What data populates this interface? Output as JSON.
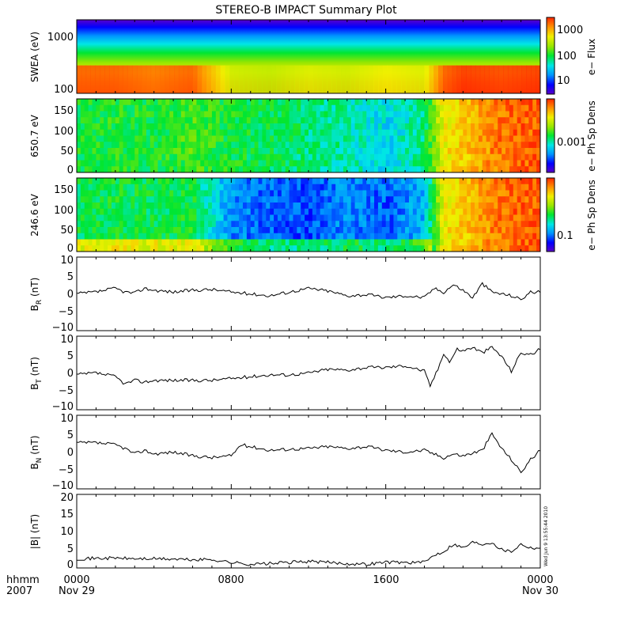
{
  "title": "STEREO-B IMPACT Summary Plot",
  "stamp": "Wed Jun 9 13:55:44 2010",
  "time_axis": {
    "row1": [
      "hhmm",
      "0000",
      "0800",
      "1600",
      "0000"
    ],
    "row2": [
      "2007",
      "Nov 29",
      "",
      "",
      "Nov 30"
    ],
    "tick_hours": [
      0,
      8,
      16,
      24
    ]
  },
  "colors": {
    "line": "#000000",
    "frame": "#000000"
  },
  "colorbar": [
    "#5a00c8",
    "#0000ff",
    "#0096ff",
    "#00e6e6",
    "#00e632",
    "#96e600",
    "#f0f000",
    "#ff9600",
    "#ff2800"
  ],
  "panels": {
    "swea": {
      "ylabel": "SWEA (eV)",
      "yticks": [
        "1000",
        "100"
      ],
      "cblabel": "e− Flux",
      "cbticks": [
        "1000",
        "100",
        "10"
      ],
      "y_scale": "log"
    },
    "pad650": {
      "ylabel": "650.7 eV",
      "yticks": [
        "150",
        "100",
        "50",
        "0"
      ],
      "cblabel": "e− Ph Sp Dens",
      "cbticks": [
        "0.001"
      ],
      "ylim": [
        0,
        180
      ]
    },
    "pad246": {
      "ylabel": "246.6 eV",
      "yticks": [
        "150",
        "100",
        "50",
        "0"
      ],
      "cblabel": "e− Ph Sp Dens",
      "cbticks": [
        "0.1"
      ],
      "ylim": [
        0,
        180
      ]
    },
    "br": {
      "ylabel_main": "B",
      "ylabel_sub": "R",
      "ylabel_unit": " (nT)",
      "yticks": [
        "10",
        "5",
        "0",
        "−5",
        "−10"
      ]
    },
    "bt": {
      "ylabel_main": "B",
      "ylabel_sub": "T",
      "ylabel_unit": " (nT)",
      "yticks": [
        "10",
        "5",
        "0",
        "−5",
        "−10"
      ]
    },
    "bn": {
      "ylabel_main": "B",
      "ylabel_sub": "N",
      "ylabel_unit": " (nT)",
      "yticks": [
        "10",
        "5",
        "0",
        "−5",
        "−10"
      ]
    },
    "bmag": {
      "ylabel": "|B| (nT)",
      "yticks": [
        "20",
        "15",
        "10",
        "5",
        "0"
      ]
    }
  },
  "chart_data": [
    {
      "type": "heatmap",
      "name_ref": "swea",
      "x_hours": [
        0,
        2,
        4,
        6,
        8,
        10,
        12,
        14,
        16,
        18,
        19,
        20,
        22,
        24
      ],
      "low_energy_flux_level": [
        0.95,
        0.95,
        0.92,
        0.95,
        0.7,
        0.68,
        0.72,
        0.7,
        0.75,
        0.72,
        0.95,
        1.0,
        0.98,
        1.0
      ]
    },
    {
      "type": "heatmap",
      "name_ref": "pad650",
      "x_hours": [
        0,
        2,
        4,
        6,
        8,
        10,
        12,
        14,
        16,
        18,
        19,
        20,
        22,
        24
      ],
      "level": [
        0.5,
        0.52,
        0.5,
        0.55,
        0.5,
        0.48,
        0.45,
        0.42,
        0.35,
        0.45,
        0.75,
        0.8,
        0.92,
        0.95
      ]
    },
    {
      "type": "heatmap",
      "name_ref": "pad246",
      "x_hours": [
        0,
        2,
        4,
        6,
        8,
        10,
        12,
        14,
        16,
        18,
        19,
        20,
        22,
        24
      ],
      "level": [
        0.48,
        0.5,
        0.48,
        0.5,
        0.25,
        0.2,
        0.18,
        0.25,
        0.2,
        0.3,
        0.75,
        0.8,
        0.92,
        0.95
      ]
    },
    {
      "type": "line",
      "name_ref": "br",
      "ylim": [
        -10,
        10
      ],
      "x_hours": [
        0,
        1,
        2,
        2.5,
        3,
        3.5,
        4,
        5,
        6,
        7,
        8,
        9,
        10,
        11,
        12,
        13,
        14,
        15,
        16,
        17,
        18,
        18.5,
        19,
        19.5,
        20,
        20.5,
        21,
        21.5,
        22,
        22.5,
        23,
        23.5,
        24
      ],
      "values": [
        0,
        0.5,
        1.5,
        0.5,
        0.2,
        1.5,
        1.0,
        0.5,
        1.0,
        1.2,
        0.5,
        0,
        -0.5,
        0.5,
        1.5,
        0.8,
        -0.5,
        -0.2,
        -1.0,
        -0.5,
        -1.0,
        1.5,
        0.5,
        2.5,
        1.0,
        -1.0,
        2.8,
        0.5,
        0.0,
        -0.5,
        -1.5,
        0.5,
        0.5
      ]
    },
    {
      "type": "line",
      "name_ref": "bt",
      "ylim": [
        -10,
        10
      ],
      "x_hours": [
        0,
        1,
        2,
        2.5,
        3,
        3.5,
        4,
        5,
        6,
        7,
        8,
        9,
        10,
        11,
        12,
        13,
        14,
        15,
        16,
        17,
        18,
        18.3,
        18.7,
        19,
        19.3,
        19.7,
        20,
        20.5,
        21,
        21.5,
        22,
        22.5,
        23,
        23.5,
        24
      ],
      "values": [
        -0.5,
        0,
        -1.0,
        -3.0,
        -2.0,
        -2.5,
        -2.0,
        -2.0,
        -2.0,
        -2.0,
        -1.5,
        -1.0,
        -0.5,
        -0.5,
        0,
        1.0,
        0.8,
        1.5,
        1.5,
        2.0,
        0.5,
        -3.5,
        1.0,
        5.5,
        3.0,
        6.5,
        6.0,
        7.0,
        5.5,
        7.0,
        4.5,
        0.5,
        5.5,
        5.0,
        6.5
      ]
    },
    {
      "type": "line",
      "name_ref": "bn",
      "ylim": [
        -10,
        10
      ],
      "x_hours": [
        0,
        1,
        2,
        2.5,
        3,
        3.5,
        4,
        5,
        6,
        7,
        8,
        8.5,
        9,
        10,
        11,
        12,
        13,
        14,
        15,
        16,
        17,
        18,
        19,
        19.5,
        20,
        21,
        21.5,
        22,
        22.5,
        23,
        23.5,
        24
      ],
      "values": [
        2.5,
        2.5,
        2.0,
        1.0,
        -0.5,
        0.5,
        -0.5,
        0,
        -1.0,
        -1.5,
        -1.0,
        2.0,
        1.5,
        0.5,
        0.8,
        1.0,
        1.5,
        1.0,
        1.5,
        0.5,
        0,
        0.5,
        -1.5,
        -0.5,
        -1.0,
        0.5,
        5.0,
        1.0,
        -2.0,
        -5.5,
        -2.0,
        0.5
      ]
    },
    {
      "type": "line",
      "name_ref": "bmag",
      "ylim": [
        0,
        20
      ],
      "x_hours": [
        0,
        1,
        2,
        3,
        4,
        5,
        6,
        7,
        8,
        9,
        10,
        11,
        12,
        13,
        14,
        15,
        16,
        17,
        18,
        18.5,
        19,
        19.5,
        20,
        20.5,
        21,
        21.5,
        22,
        22.5,
        23,
        23.5,
        24
      ],
      "values": [
        2.5,
        2.6,
        2.7,
        2.5,
        2.5,
        2.4,
        2.2,
        2.3,
        1.5,
        1.0,
        1.2,
        1.5,
        1.8,
        1.5,
        1.2,
        1.0,
        1.6,
        1.5,
        1.5,
        3.5,
        4.5,
        6.5,
        5.5,
        7.0,
        6.5,
        7.0,
        5.0,
        4.5,
        6.5,
        5.5,
        5.5
      ]
    }
  ]
}
